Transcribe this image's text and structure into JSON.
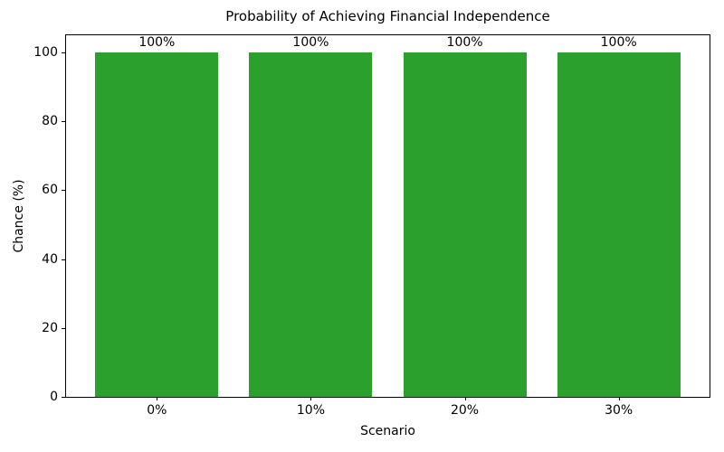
{
  "chart_data": {
    "type": "bar",
    "title": "Probability of Achieving Financial Independence",
    "xlabel": "Scenario",
    "ylabel": "Chance (%)",
    "categories": [
      "0%",
      "10%",
      "20%",
      "30%"
    ],
    "values": [
      100,
      100,
      100,
      100
    ],
    "bar_labels": [
      "100%",
      "100%",
      "100%",
      "100%"
    ],
    "yticks": [
      0,
      20,
      40,
      60,
      80,
      100
    ],
    "ylim": [
      0,
      105
    ],
    "xlim": [
      -0.59,
      3.59
    ],
    "bar_width": 0.8,
    "bar_color": "#2ca02c",
    "background_color": "#ffffff",
    "spine_color": "#000000",
    "text_color": "#000000",
    "grid": false
  }
}
